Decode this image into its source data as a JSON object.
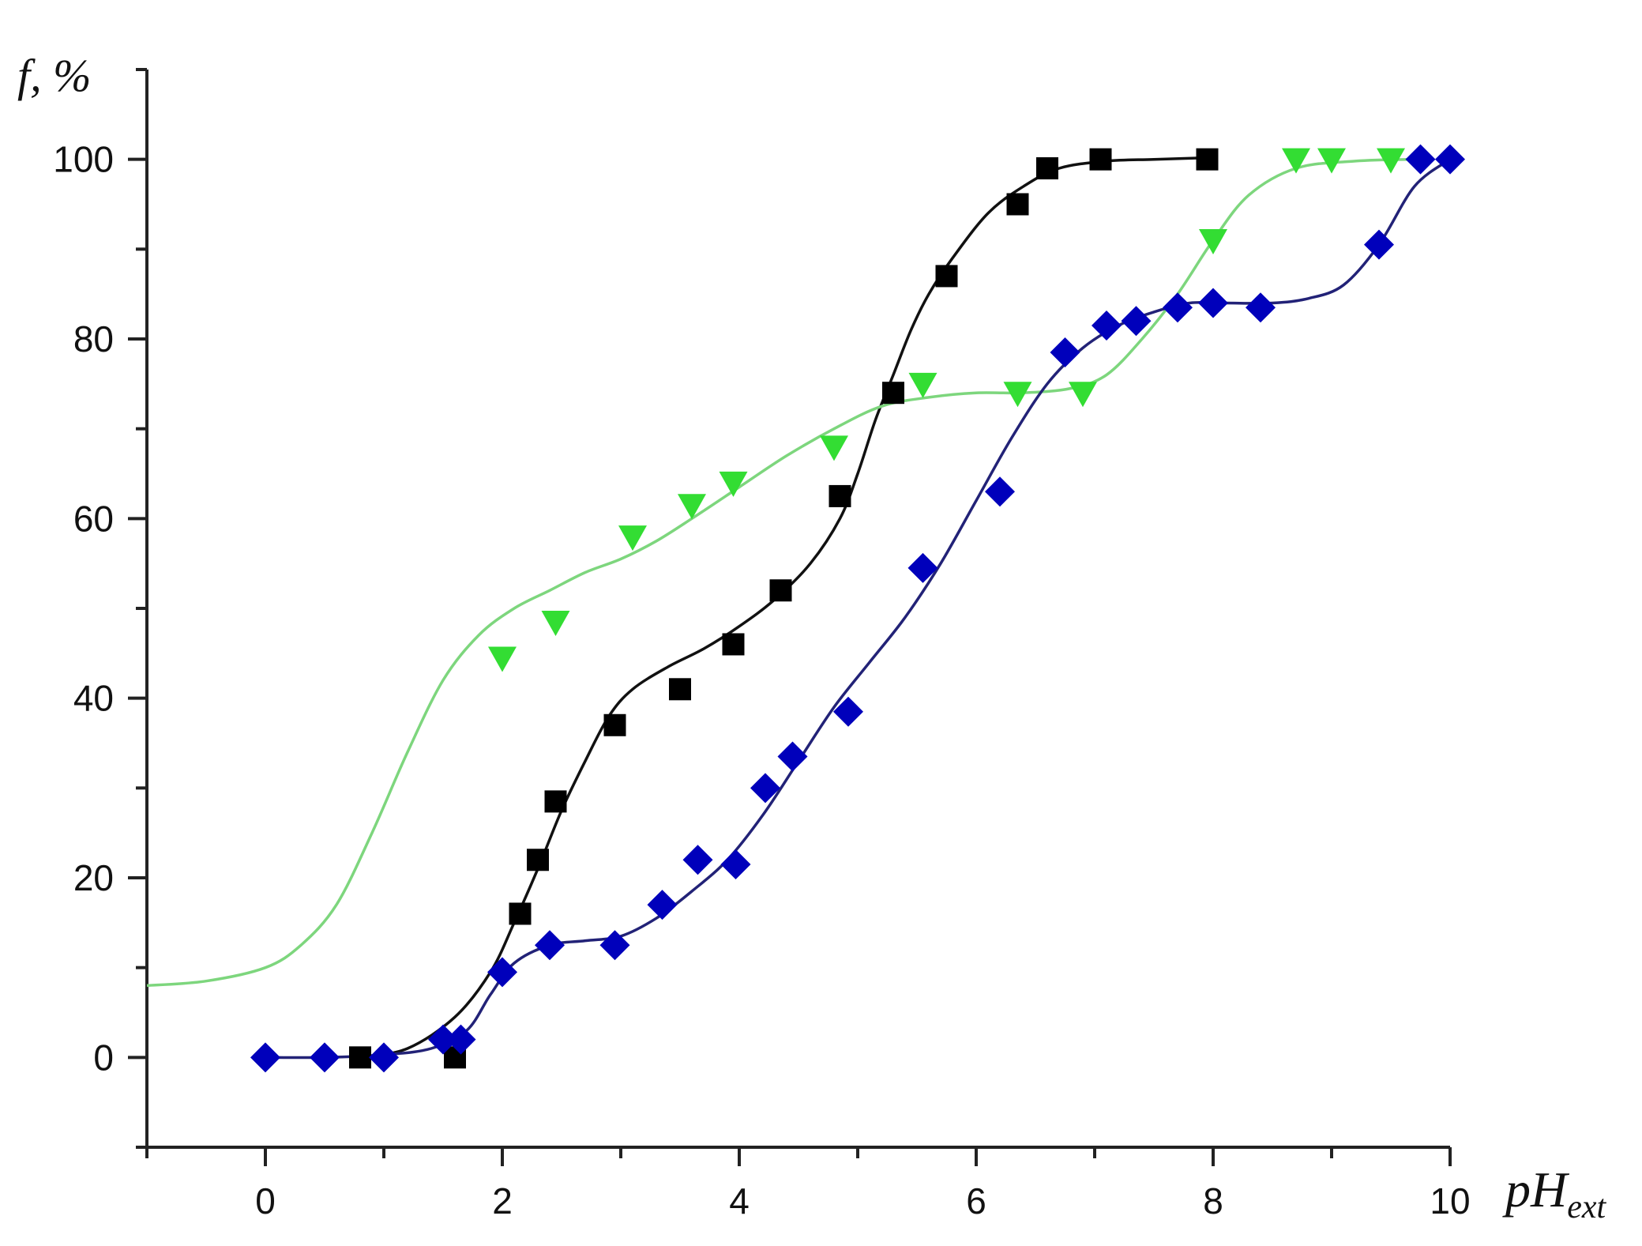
{
  "chart_data": {
    "type": "scatter",
    "title": "",
    "ylabel": "f, %",
    "xlabel": "pH",
    "xlabel_sub": "ext",
    "xlim": [
      -1,
      10
    ],
    "ylim": [
      -10,
      110
    ],
    "x_ticks": [
      "0",
      "2",
      "4",
      "6",
      "8",
      "10"
    ],
    "y_ticks": [
      "0",
      "20",
      "40",
      "60",
      "80",
      "100"
    ],
    "grid": false,
    "series": [
      {
        "marker": "square",
        "color": "#000000",
        "line_color": "#111111",
        "points": [
          [
            0.8,
            0
          ],
          [
            1.6,
            0
          ],
          [
            2.15,
            16
          ],
          [
            2.3,
            22
          ],
          [
            2.45,
            28.5
          ],
          [
            2.95,
            37
          ],
          [
            3.5,
            41
          ],
          [
            3.95,
            46
          ],
          [
            4.35,
            52
          ],
          [
            4.85,
            62.5
          ],
          [
            5.3,
            74
          ],
          [
            5.75,
            87
          ],
          [
            6.35,
            95
          ],
          [
            6.6,
            99
          ],
          [
            7.05,
            100
          ],
          [
            7.95,
            100
          ]
        ],
        "curve": [
          [
            0.8,
            0
          ],
          [
            1.2,
            1
          ],
          [
            1.6,
            4.5
          ],
          [
            1.9,
            9.5
          ],
          [
            2.1,
            15
          ],
          [
            2.3,
            21
          ],
          [
            2.5,
            27.5
          ],
          [
            2.7,
            33
          ],
          [
            2.9,
            38
          ],
          [
            3.1,
            41
          ],
          [
            3.4,
            43.5
          ],
          [
            3.7,
            45.5
          ],
          [
            4.0,
            48
          ],
          [
            4.3,
            51
          ],
          [
            4.6,
            55
          ],
          [
            4.85,
            60
          ],
          [
            5.0,
            65
          ],
          [
            5.15,
            71
          ],
          [
            5.3,
            76
          ],
          [
            5.45,
            81
          ],
          [
            5.6,
            85
          ],
          [
            5.8,
            89
          ],
          [
            6.1,
            94
          ],
          [
            6.4,
            97
          ],
          [
            6.7,
            99
          ],
          [
            7.1,
            99.8
          ],
          [
            7.5,
            100
          ],
          [
            8.0,
            100.2
          ]
        ]
      },
      {
        "marker": "triangle-down",
        "color": "#33dd33",
        "line_color": "#7dd67d",
        "points": [
          [
            2.0,
            44.5
          ],
          [
            2.45,
            48.5
          ],
          [
            3.1,
            58
          ],
          [
            3.6,
            61.5
          ],
          [
            3.95,
            64
          ],
          [
            4.8,
            68
          ],
          [
            5.55,
            75
          ],
          [
            6.35,
            74
          ],
          [
            6.9,
            74
          ],
          [
            8.0,
            91
          ],
          [
            8.7,
            100
          ],
          [
            9.0,
            100
          ],
          [
            9.5,
            100
          ]
        ],
        "curve": [
          [
            -1.0,
            8
          ],
          [
            -0.5,
            8.5
          ],
          [
            0.0,
            10
          ],
          [
            0.3,
            12.5
          ],
          [
            0.6,
            17
          ],
          [
            0.9,
            25
          ],
          [
            1.2,
            34
          ],
          [
            1.5,
            42
          ],
          [
            1.8,
            47
          ],
          [
            2.1,
            50
          ],
          [
            2.4,
            52
          ],
          [
            2.7,
            54
          ],
          [
            3.0,
            55.5
          ],
          [
            3.3,
            57.5
          ],
          [
            3.6,
            60
          ],
          [
            4.0,
            63.5
          ],
          [
            4.4,
            67
          ],
          [
            4.8,
            70
          ],
          [
            5.2,
            72.5
          ],
          [
            5.6,
            73.5
          ],
          [
            6.0,
            74
          ],
          [
            6.4,
            74
          ],
          [
            6.8,
            74.5
          ],
          [
            7.1,
            76
          ],
          [
            7.4,
            80
          ],
          [
            7.7,
            85
          ],
          [
            8.0,
            91
          ],
          [
            8.3,
            96
          ],
          [
            8.7,
            99
          ],
          [
            9.2,
            99.8
          ],
          [
            9.7,
            100
          ]
        ]
      },
      {
        "marker": "diamond",
        "color": "#0000bb",
        "line_color": "#222277",
        "points": [
          [
            0.0,
            0
          ],
          [
            0.5,
            0
          ],
          [
            1.0,
            0
          ],
          [
            1.5,
            2
          ],
          [
            1.65,
            2
          ],
          [
            2.0,
            9.5
          ],
          [
            2.4,
            12.5
          ],
          [
            2.95,
            12.5
          ],
          [
            3.35,
            17
          ],
          [
            3.65,
            22
          ],
          [
            3.97,
            21.5
          ],
          [
            4.22,
            30
          ],
          [
            4.45,
            33.5
          ],
          [
            4.92,
            38.5
          ],
          [
            5.55,
            54.5
          ],
          [
            6.2,
            63
          ],
          [
            6.75,
            78.5
          ],
          [
            7.1,
            81.5
          ],
          [
            7.35,
            82
          ],
          [
            7.7,
            83.5
          ],
          [
            8.0,
            84
          ],
          [
            8.4,
            83.5
          ],
          [
            9.4,
            90.5
          ],
          [
            9.75,
            100
          ],
          [
            10.0,
            100
          ]
        ],
        "curve": [
          [
            0.0,
            0
          ],
          [
            0.5,
            0
          ],
          [
            1.0,
            0.3
          ],
          [
            1.4,
            1
          ],
          [
            1.7,
            3
          ],
          [
            1.9,
            7
          ],
          [
            2.1,
            10.5
          ],
          [
            2.4,
            12.5
          ],
          [
            2.7,
            13
          ],
          [
            3.0,
            13.5
          ],
          [
            3.3,
            15.5
          ],
          [
            3.6,
            18.5
          ],
          [
            3.9,
            22
          ],
          [
            4.2,
            27
          ],
          [
            4.5,
            33
          ],
          [
            4.8,
            39
          ],
          [
            5.1,
            44
          ],
          [
            5.4,
            49
          ],
          [
            5.7,
            55
          ],
          [
            6.0,
            62
          ],
          [
            6.3,
            69
          ],
          [
            6.6,
            75
          ],
          [
            6.9,
            79
          ],
          [
            7.2,
            81.5
          ],
          [
            7.5,
            83
          ],
          [
            7.8,
            84
          ],
          [
            8.1,
            84
          ],
          [
            8.5,
            84
          ],
          [
            8.8,
            84.5
          ],
          [
            9.1,
            86
          ],
          [
            9.4,
            90.5
          ],
          [
            9.7,
            97
          ],
          [
            10.0,
            100
          ]
        ]
      }
    ]
  }
}
